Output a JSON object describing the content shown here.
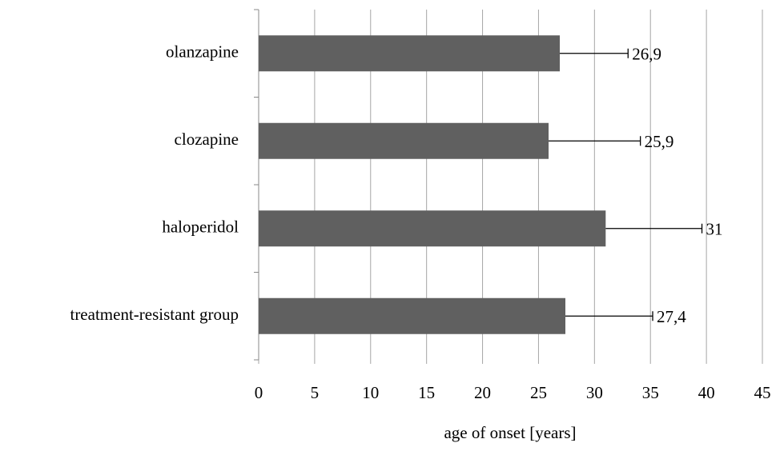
{
  "chart_data": {
    "type": "bar",
    "orientation": "horizontal",
    "categories": [
      "olanzapine",
      "clozapine",
      "haloperidol",
      "treatment-resistant group"
    ],
    "values": [
      26.9,
      25.9,
      31,
      27.4
    ],
    "value_labels": [
      "26,9",
      "25,9",
      "31",
      "27,4"
    ],
    "errors": [
      6.1,
      8.2,
      8.6,
      7.8
    ],
    "color": "#606060",
    "x_label": "age of onset [years]",
    "xlim": [
      0,
      45
    ],
    "xticks": [
      0,
      5,
      10,
      15,
      20,
      25,
      30,
      35,
      40,
      45
    ],
    "grid": true
  }
}
